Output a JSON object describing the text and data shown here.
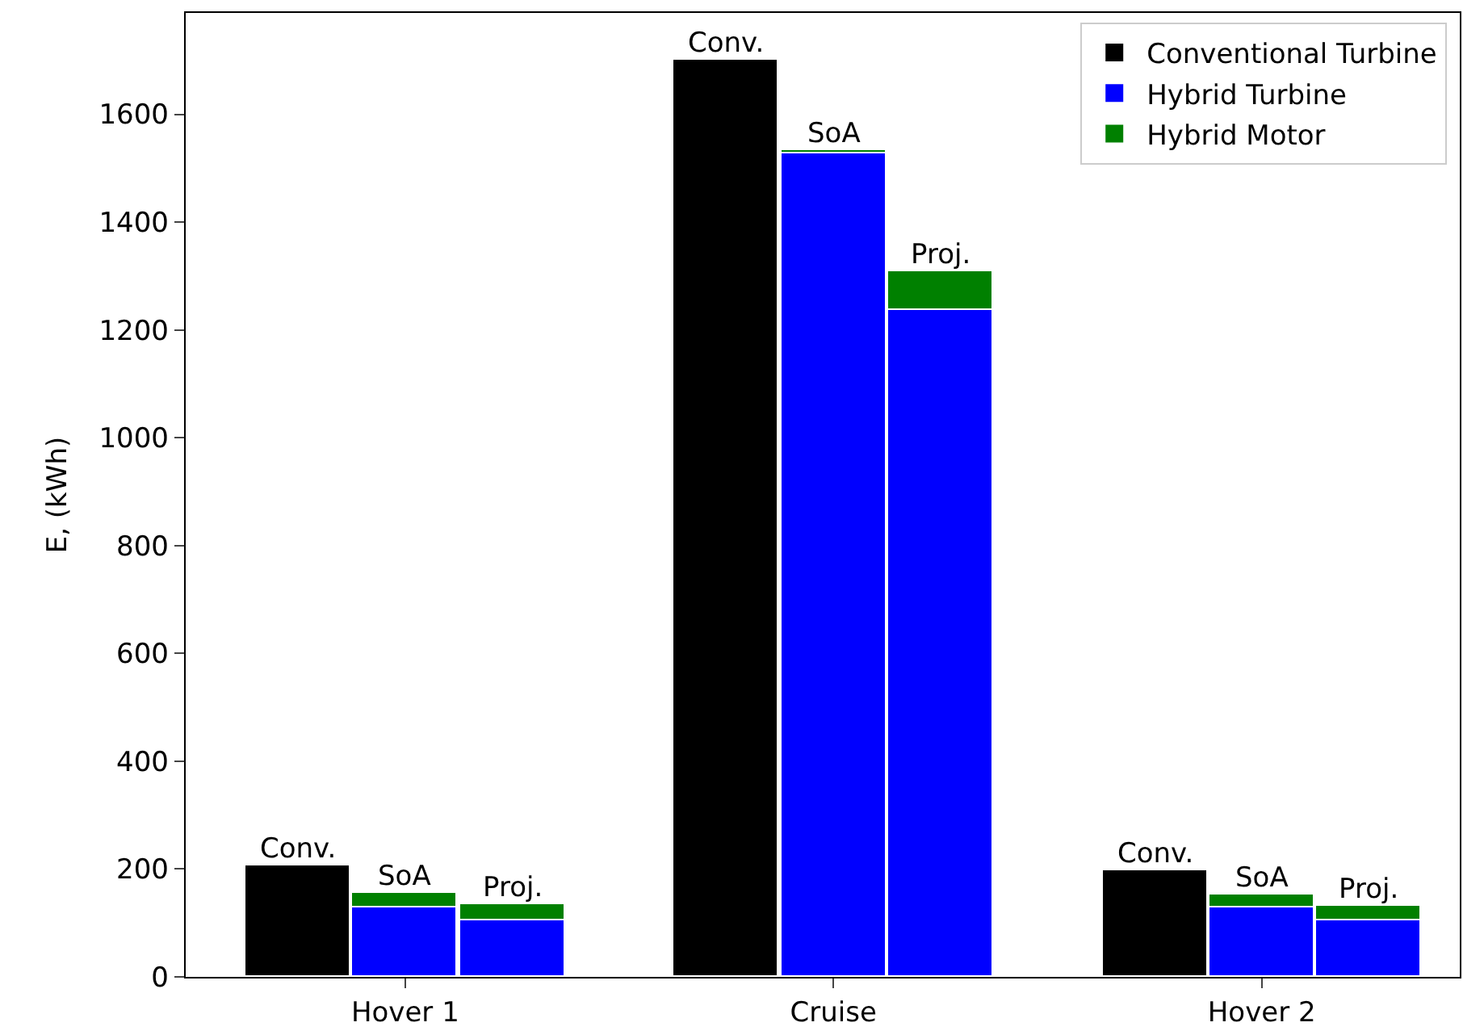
{
  "chart_data": {
    "type": "bar",
    "stacked": true,
    "ylabel": "E, (kWh)",
    "categories": [
      null,
      "Hover 1",
      null,
      null,
      null,
      "Cruise",
      null,
      null,
      null,
      "Hover 2",
      null
    ],
    "series": [
      {
        "name": "Conventional Turbine",
        "color": "#000000",
        "values": [
          208,
          null,
          null,
          null,
          1700,
          null,
          null,
          null,
          198,
          null,
          null
        ],
        "value_labels": [
          "Conv.",
          null,
          null,
          null,
          "Conv.",
          null,
          null,
          null,
          "Conv.",
          null,
          null
        ]
      },
      {
        "name": "Hybrid Turbine",
        "color": "#0000ff",
        "values": [
          null,
          130,
          105,
          null,
          null,
          1528,
          1237,
          null,
          null,
          129,
          105
        ]
      },
      {
        "name": "Hybrid Motor",
        "color": "#008000",
        "values": [
          null,
          26,
          30,
          null,
          null,
          5,
          71,
          null,
          null,
          24,
          27
        ],
        "value_labels": [
          null,
          "SoA",
          "Proj.",
          null,
          null,
          "SoA",
          "Proj.",
          null,
          null,
          "SoA",
          "Proj."
        ]
      }
    ],
    "ylim": [
      0,
      1788
    ],
    "yticks": [
      0,
      200,
      400,
      600,
      800,
      1000,
      1200,
      1400,
      1600
    ],
    "legend": "top right"
  }
}
